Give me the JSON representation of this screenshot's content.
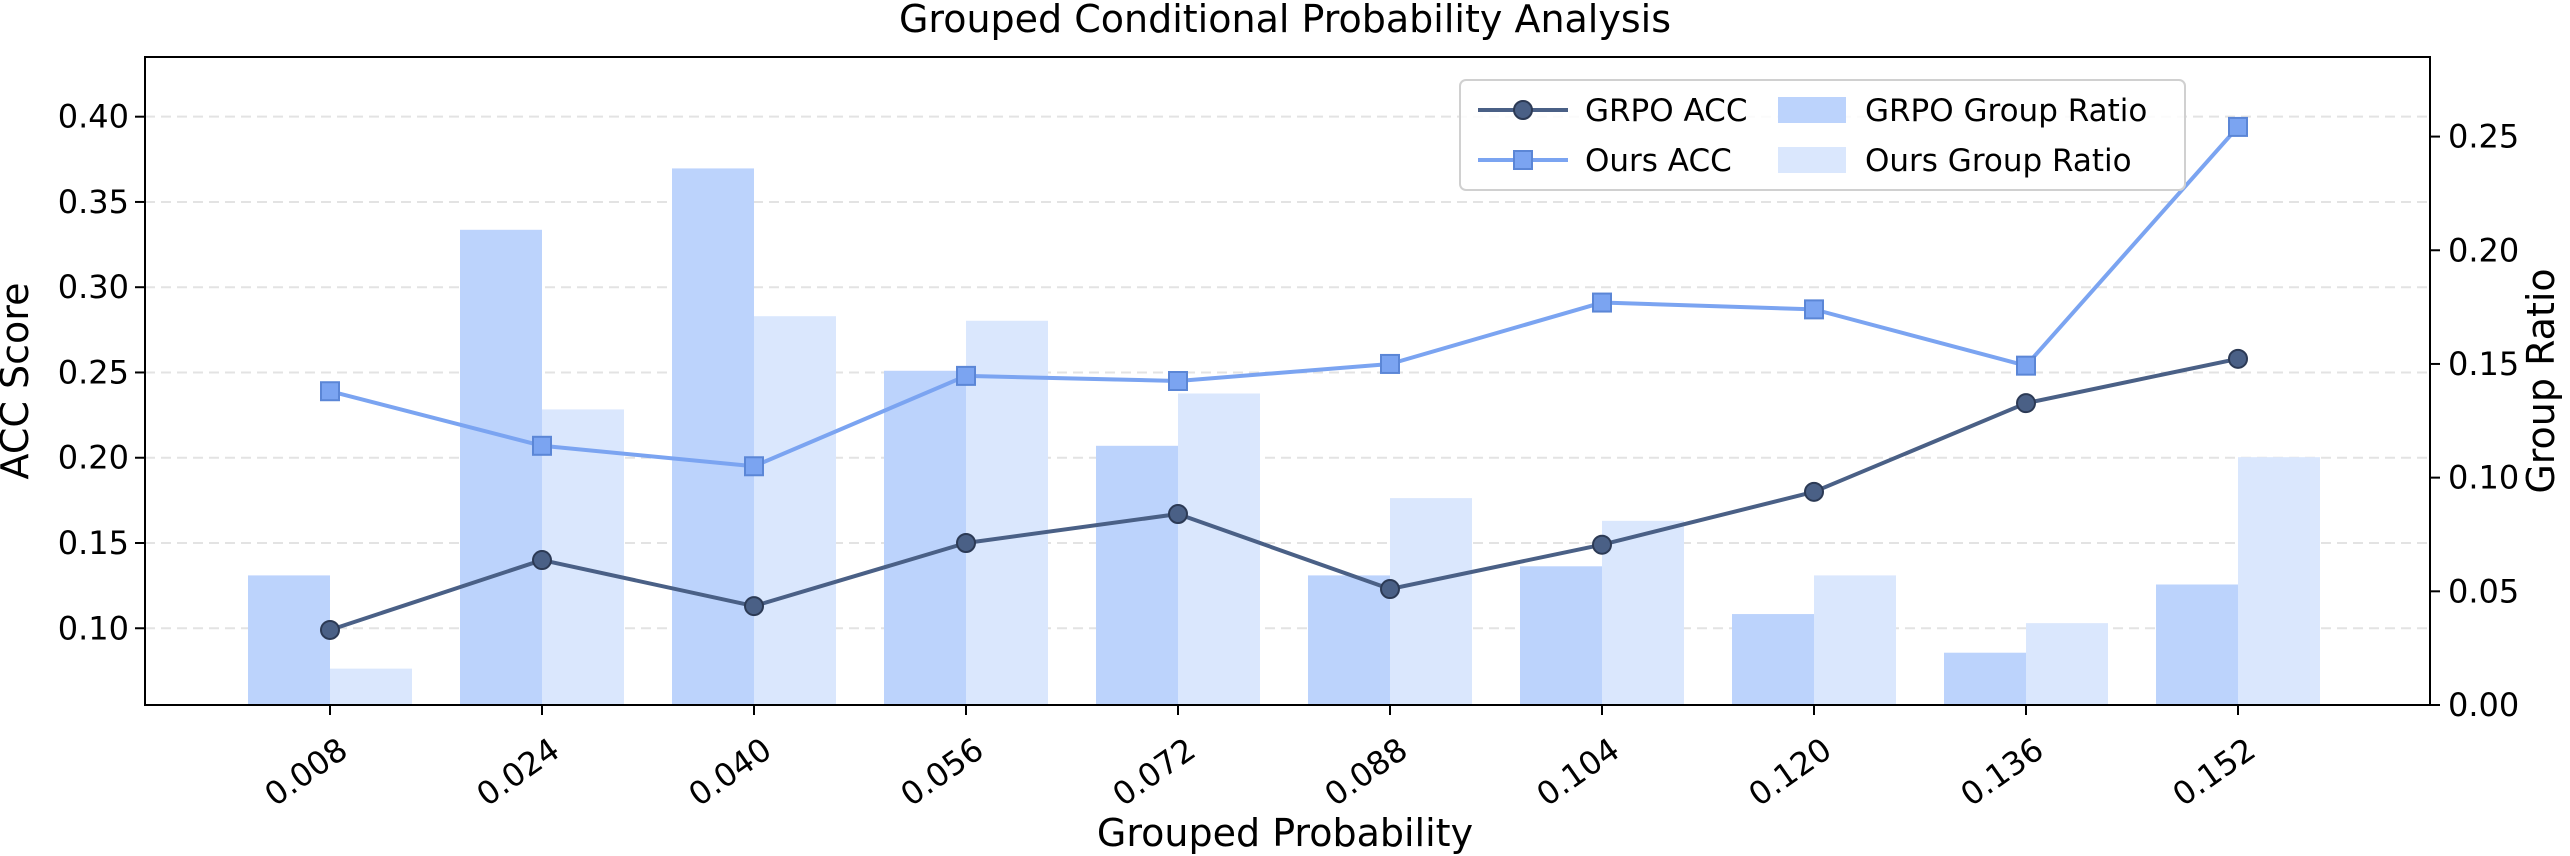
{
  "chart_data": {
    "type": "bar+line",
    "title": "Grouped Conditional Probability Analysis",
    "xlabel": "Grouped Probability",
    "ylabel_left": "ACC Score",
    "ylabel_right": "Group Ratio",
    "categories": [
      "0.008",
      "0.024",
      "0.040",
      "0.056",
      "0.072",
      "0.088",
      "0.104",
      "0.120",
      "0.136",
      "0.152"
    ],
    "ylim_left": [
      0.055,
      0.435
    ],
    "yticks_left": [
      0.1,
      0.15,
      0.2,
      0.25,
      0.3,
      0.35,
      0.4
    ],
    "yticks_left_labels": [
      "0.10",
      "0.15",
      "0.20",
      "0.25",
      "0.30",
      "0.35",
      "0.40"
    ],
    "ylim_right": [
      0.0,
      0.285
    ],
    "yticks_right": [
      0.0,
      0.05,
      0.1,
      0.15,
      0.2,
      0.25
    ],
    "yticks_right_labels": [
      "0.00",
      "0.05",
      "0.10",
      "0.15",
      "0.20",
      "0.25"
    ],
    "grid": "horizontal dashed",
    "legend_position": "top-right",
    "bar_series": [
      {
        "name": "GRPO Group Ratio",
        "axis": "right",
        "color": "#bcd3fc",
        "values": [
          0.057,
          0.209,
          0.236,
          0.147,
          0.114,
          0.057,
          0.061,
          0.04,
          0.023,
          0.053
        ]
      },
      {
        "name": "Ours Group Ratio",
        "axis": "right",
        "color": "#dae7fd",
        "values": [
          0.016,
          0.13,
          0.171,
          0.169,
          0.137,
          0.091,
          0.081,
          0.057,
          0.036,
          0.109
        ]
      }
    ],
    "line_series": [
      {
        "name": "GRPO ACC",
        "axis": "left",
        "color": "#4a6086",
        "marker": "circle",
        "values": [
          0.099,
          0.14,
          0.113,
          0.15,
          0.167,
          0.123,
          0.149,
          0.18,
          0.232,
          0.258
        ]
      },
      {
        "name": "Ours ACC",
        "axis": "left",
        "color": "#7ba4f1",
        "marker": "square",
        "values": [
          0.239,
          0.207,
          0.195,
          0.248,
          0.245,
          0.255,
          0.291,
          0.287,
          0.254,
          0.394
        ]
      }
    ]
  }
}
